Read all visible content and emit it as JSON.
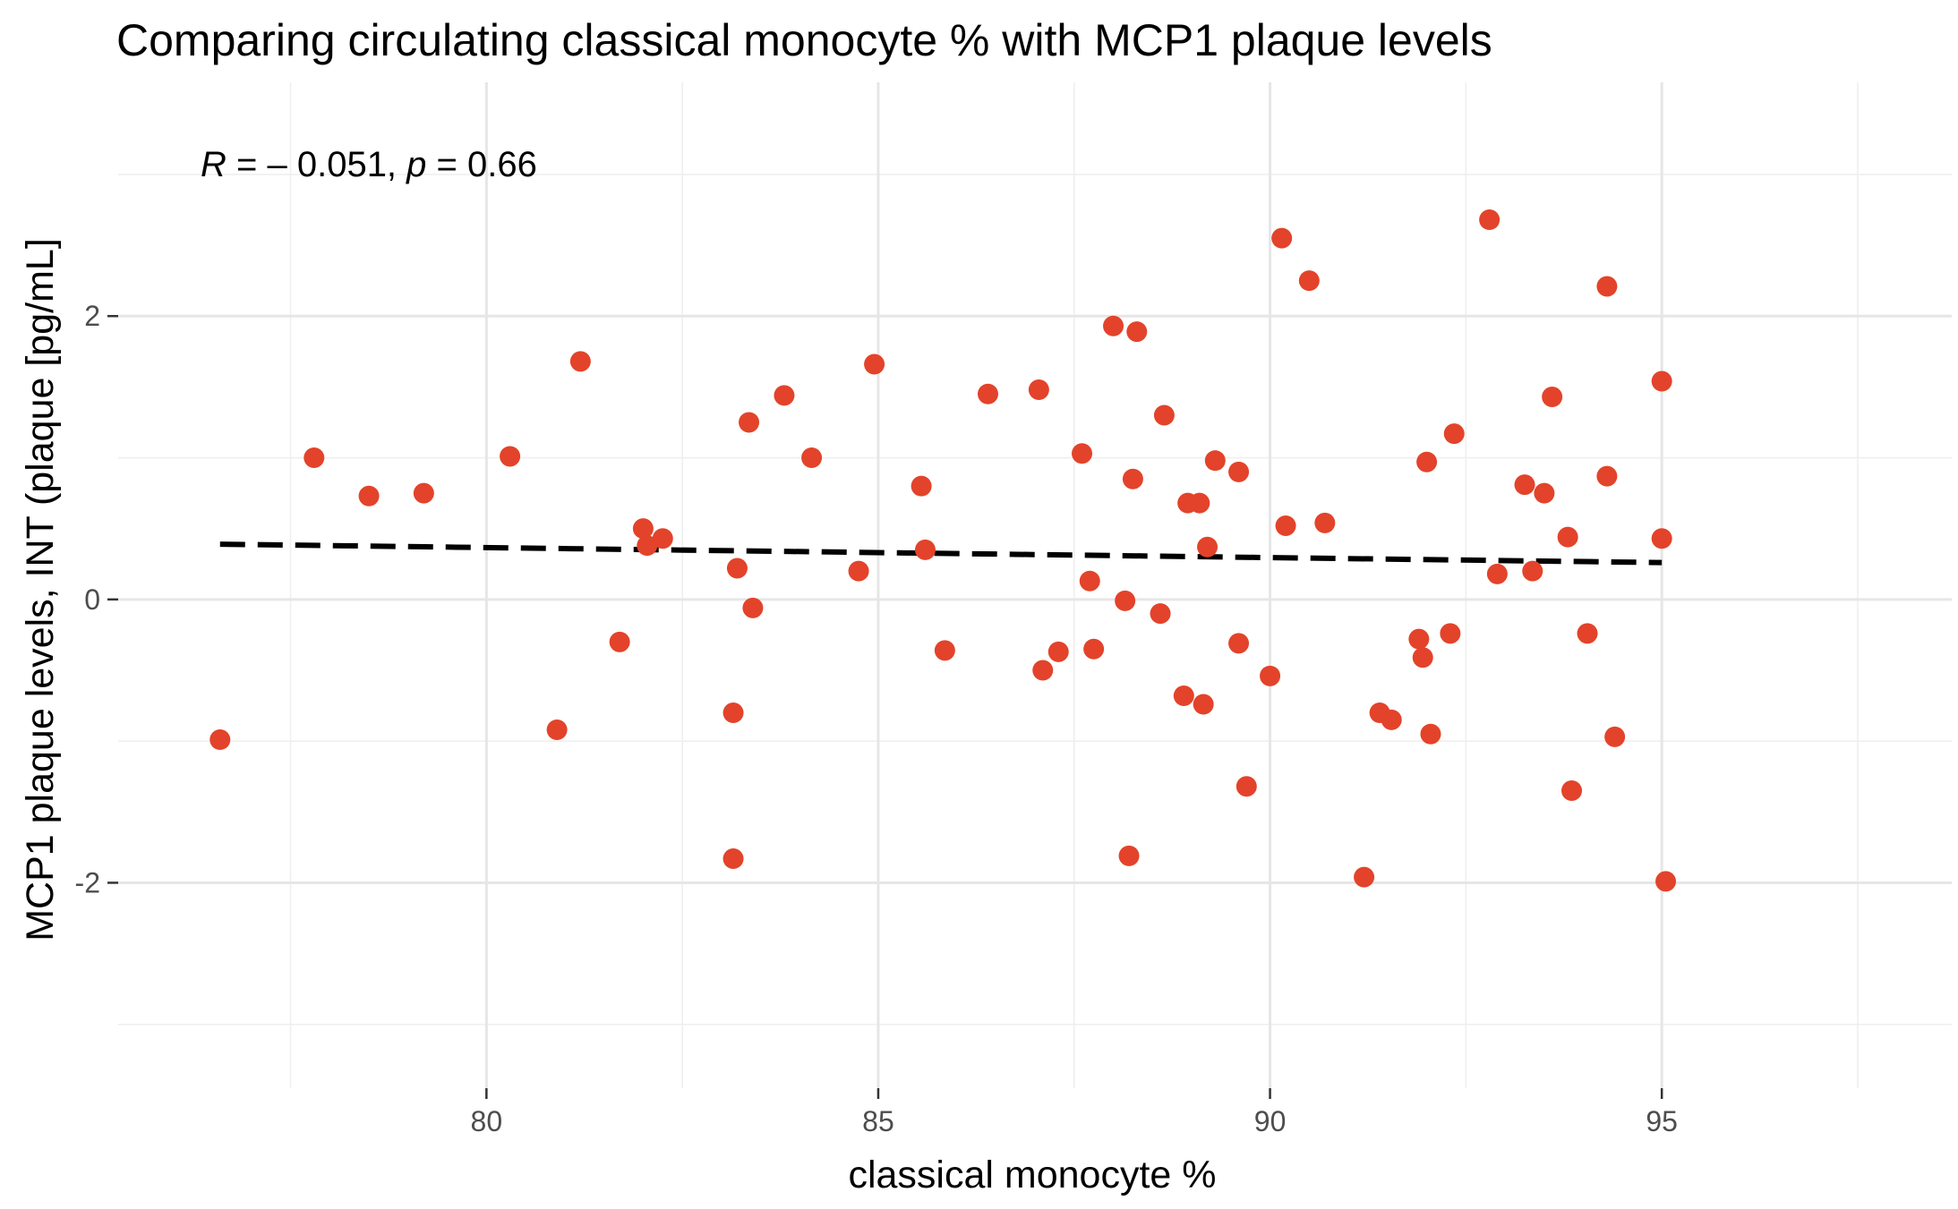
{
  "chart_data": {
    "type": "scatter",
    "title": "Comparing circulating classical monocyte % with MCP1 plaque levels",
    "xlabel": "classical monocyte %",
    "ylabel": "MCP1 plaque levels, INT (plaque [pg/mL]",
    "xlim": [
      75.3,
      98.7
    ],
    "ylim": [
      -3.45,
      3.65
    ],
    "x_ticks": [
      80,
      85,
      90,
      95
    ],
    "y_ticks": [
      -2,
      0,
      2
    ],
    "x_tick_labels": [
      "80",
      "85",
      "90",
      "95"
    ],
    "y_tick_labels": [
      "-2",
      "0",
      "2"
    ],
    "grid": true,
    "point_color": "#E3432A",
    "annotation": {
      "r_symbol": "R",
      "r_text": " = – 0.051, ",
      "p_symbol": "p",
      "p_text": " = 0.66",
      "x": 76.5,
      "y": 3.13
    },
    "trend_line": {
      "style": "dashed",
      "color": "#000000",
      "x": [
        76.6,
        95.0
      ],
      "y": [
        0.39,
        0.26
      ]
    },
    "points": {
      "x": [
        76.6,
        77.8,
        78.5,
        79.2,
        80.3,
        80.9,
        81.2,
        81.7,
        82.0,
        82.05,
        82.25,
        83.15,
        83.15,
        83.2,
        83.35,
        83.4,
        83.8,
        84.15,
        84.75,
        84.95,
        85.55,
        85.6,
        85.85,
        86.4,
        87.05,
        87.1,
        87.3,
        87.6,
        87.7,
        87.75,
        88.0,
        88.15,
        88.2,
        88.25,
        88.3,
        88.6,
        88.65,
        88.9,
        88.95,
        89.1,
        89.15,
        89.2,
        89.3,
        89.6,
        89.6,
        89.7,
        90.0,
        90.15,
        90.2,
        90.5,
        90.7,
        91.2,
        91.4,
        91.55,
        91.9,
        91.95,
        92.0,
        92.05,
        92.3,
        92.35,
        92.8,
        92.9,
        93.25,
        93.35,
        93.5,
        93.6,
        93.8,
        93.85,
        94.05,
        94.3,
        94.3,
        94.4,
        95.0,
        95.0,
        95.05
      ],
      "y": [
        -0.99,
        1.0,
        0.73,
        0.75,
        1.01,
        -0.92,
        1.68,
        -0.3,
        0.5,
        0.38,
        0.43,
        -1.83,
        -0.8,
        0.22,
        1.25,
        -0.06,
        1.44,
        1.0,
        0.2,
        1.66,
        0.8,
        0.35,
        -0.36,
        1.45,
        1.48,
        -0.5,
        -0.37,
        1.03,
        0.13,
        -0.35,
        1.93,
        -0.01,
        -1.81,
        0.85,
        1.89,
        -0.1,
        1.3,
        -0.68,
        0.68,
        0.68,
        -0.74,
        0.37,
        0.98,
        -0.31,
        0.9,
        -1.32,
        -0.54,
        2.55,
        0.52,
        2.25,
        0.54,
        -1.96,
        -0.8,
        -0.85,
        -0.28,
        -0.41,
        0.97,
        -0.95,
        -0.24,
        1.17,
        2.68,
        0.18,
        0.81,
        0.2,
        0.75,
        1.43,
        0.44,
        -1.35,
        -0.24,
        2.21,
        0.87,
        -0.97,
        1.54,
        0.43,
        -1.99
      ]
    }
  }
}
